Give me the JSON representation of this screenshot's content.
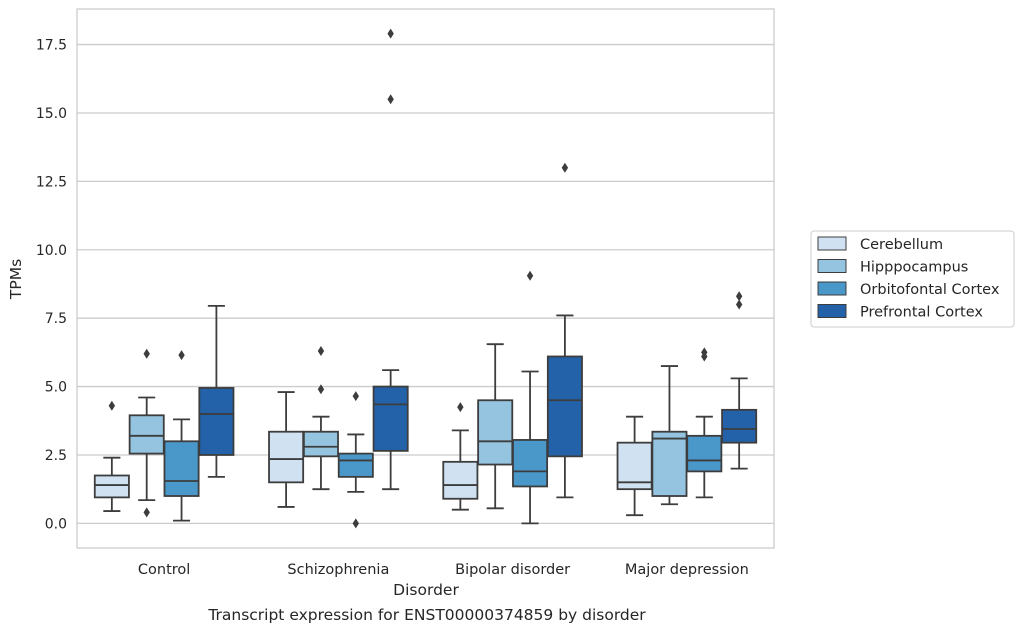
{
  "caption": "Transcript expression for ENST00000374859 by disorder",
  "chart_data": {
    "type": "boxplot",
    "title": "",
    "xlabel": "Disorder",
    "ylabel": "TPMs",
    "ylim": [
      -0.9,
      18.8
    ],
    "yticks": [
      0.0,
      2.5,
      5.0,
      7.5,
      10.0,
      12.5,
      15.0,
      17.5
    ],
    "ytick_labels": [
      "0.0",
      "2.5",
      "5.0",
      "7.5",
      "10.0",
      "12.5",
      "15.0",
      "17.5"
    ],
    "categories": [
      "Control",
      "Schizophrenia",
      "Bipolar disorder",
      "Major depression"
    ],
    "grid": "horizontal",
    "legend_position": "right",
    "series": [
      {
        "name": "Cerebellum",
        "color": "#d0e1f2",
        "boxes": [
          {
            "whislo": 0.45,
            "q1": 0.95,
            "med": 1.4,
            "q3": 1.75,
            "whishi": 2.4,
            "fliers": [
              4.3
            ]
          },
          {
            "whislo": 0.6,
            "q1": 1.5,
            "med": 2.35,
            "q3": 3.35,
            "whishi": 4.8,
            "fliers": []
          },
          {
            "whislo": 0.5,
            "q1": 0.9,
            "med": 1.4,
            "q3": 2.25,
            "whishi": 3.4,
            "fliers": [
              4.25
            ]
          },
          {
            "whislo": 0.3,
            "q1": 1.25,
            "med": 1.5,
            "q3": 2.95,
            "whishi": 3.9,
            "fliers": []
          }
        ]
      },
      {
        "name": "Hipppocampus",
        "color": "#94c4df",
        "boxes": [
          {
            "whislo": 0.85,
            "q1": 2.55,
            "med": 3.2,
            "q3": 3.95,
            "whishi": 4.6,
            "fliers": [
              6.2,
              0.4
            ]
          },
          {
            "whislo": 1.25,
            "q1": 2.45,
            "med": 2.8,
            "q3": 3.35,
            "whishi": 3.9,
            "fliers": [
              6.3,
              4.9
            ]
          },
          {
            "whislo": 0.55,
            "q1": 2.15,
            "med": 3.0,
            "q3": 4.5,
            "whishi": 6.55,
            "fliers": []
          },
          {
            "whislo": 0.7,
            "q1": 1.0,
            "med": 3.1,
            "q3": 3.35,
            "whishi": 5.75,
            "fliers": []
          }
        ]
      },
      {
        "name": "Orbitofontal Cortex",
        "color": "#4a98c9",
        "boxes": [
          {
            "whislo": 0.1,
            "q1": 1.0,
            "med": 1.55,
            "q3": 3.0,
            "whishi": 3.8,
            "fliers": [
              6.15
            ]
          },
          {
            "whislo": 1.15,
            "q1": 1.7,
            "med": 2.3,
            "q3": 2.55,
            "whishi": 3.25,
            "fliers": [
              4.65,
              0.0
            ]
          },
          {
            "whislo": 0.0,
            "q1": 1.35,
            "med": 1.9,
            "q3": 3.05,
            "whishi": 5.55,
            "fliers": [
              9.05
            ]
          },
          {
            "whislo": 0.95,
            "q1": 1.9,
            "med": 2.3,
            "q3": 3.2,
            "whishi": 3.9,
            "fliers": [
              6.25,
              6.1
            ]
          }
        ]
      },
      {
        "name": "Prefrontal Cortex",
        "color": "#2362a8",
        "boxes": [
          {
            "whislo": 1.7,
            "q1": 2.5,
            "med": 4.0,
            "q3": 4.95,
            "whishi": 7.95,
            "fliers": []
          },
          {
            "whislo": 1.25,
            "q1": 2.65,
            "med": 4.35,
            "q3": 5.0,
            "whishi": 5.6,
            "fliers": [
              17.9,
              15.5
            ]
          },
          {
            "whislo": 0.95,
            "q1": 2.45,
            "med": 4.5,
            "q3": 6.1,
            "whishi": 7.6,
            "fliers": [
              13.0
            ]
          },
          {
            "whislo": 2.0,
            "q1": 2.95,
            "med": 3.45,
            "q3": 4.15,
            "whishi": 5.3,
            "fliers": [
              8.3,
              8.0
            ]
          }
        ]
      }
    ]
  }
}
